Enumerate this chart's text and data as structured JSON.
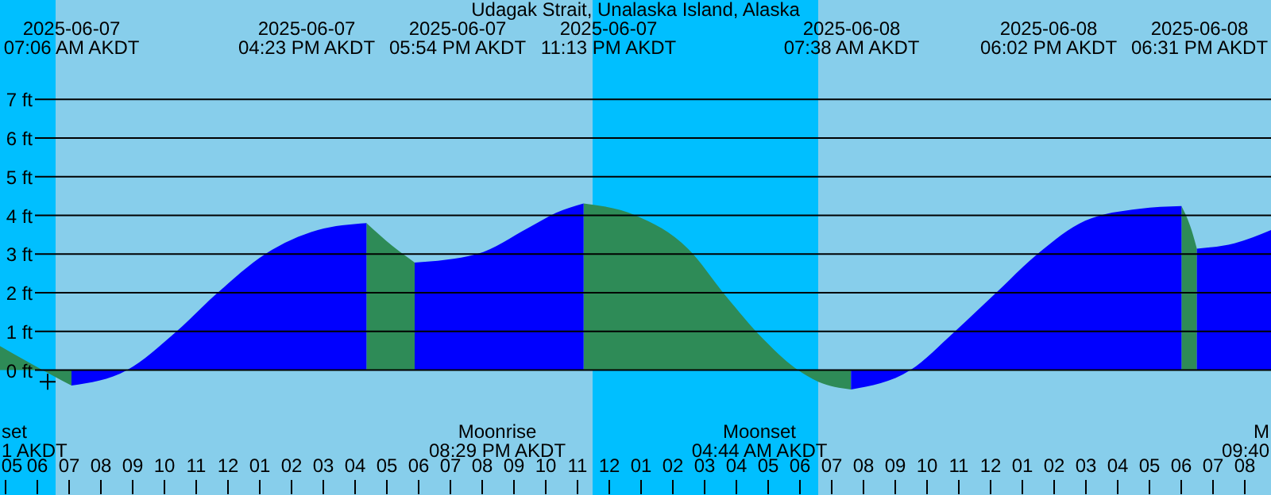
{
  "chart_data": {
    "type": "area",
    "title": "Udagak Strait, Unalaska Island, Alaska",
    "x": [
      "2025-06-07T04:51",
      "2025-06-07T06:30",
      "2025-06-07T07:06",
      "2025-06-07T08:51",
      "2025-06-07T10:21",
      "2025-06-07T11:42",
      "2025-06-07T13:12",
      "2025-06-07T14:51",
      "2025-06-07T16:23",
      "2025-06-07T17:12",
      "2025-06-07T17:54",
      "2025-06-07T19:51",
      "2025-06-07T21:30",
      "2025-06-07T22:21",
      "2025-06-07T23:13",
      "2025-06-08T00:51",
      "2025-06-08T02:30",
      "2025-06-08T03:42",
      "2025-06-08T04:51",
      "2025-06-08T05:51",
      "2025-06-08T06:36",
      "2025-06-08T07:38",
      "2025-06-08T09:30",
      "2025-06-08T10:51",
      "2025-06-08T12:12",
      "2025-06-08T13:30",
      "2025-06-08T15:00",
      "2025-06-08T16:42",
      "2025-06-08T18:02",
      "2025-06-08T18:21",
      "2025-06-08T18:31",
      "2025-06-08T19:42",
      "2025-06-08T20:51"
    ],
    "series": [
      {
        "color": "#2e8b57",
        "values": [
          0.62,
          -0.14,
          -0.4,
          null,
          null,
          null,
          null,
          null,
          3.8,
          3.21,
          2.78,
          null,
          null,
          null,
          4.31,
          4.0,
          3.14,
          1.91,
          0.82,
          0.07,
          -0.3,
          -0.5,
          null,
          null,
          null,
          null,
          null,
          null,
          4.24,
          3.62,
          3.14,
          null,
          null
        ]
      },
      {
        "color": "#0000ff",
        "values": [
          null,
          null,
          -0.4,
          0.0,
          0.96,
          2.0,
          3.0,
          3.62,
          3.8,
          null,
          2.78,
          3.0,
          3.69,
          4.07,
          4.31,
          null,
          null,
          null,
          null,
          null,
          null,
          -0.5,
          0.0,
          0.96,
          2.0,
          3.0,
          3.86,
          4.17,
          4.24,
          null,
          3.14,
          3.28,
          3.62
        ]
      },
      {
        "type": "scatter",
        "marker": "cross",
        "color": "#000000",
        "x": [
          "2025-06-07T06:21"
        ],
        "values": [
          -0.3
        ]
      }
    ],
    "xlim": [
      "2025-06-07T04:51",
      "2025-06-08T20:51"
    ],
    "xticks": [
      {
        "value": "2025-06-07T05:00",
        "label": "05"
      },
      {
        "value": "2025-06-07T06:00",
        "label": "06"
      },
      {
        "value": "2025-06-07T07:00",
        "label": "07"
      },
      {
        "value": "2025-06-07T08:00",
        "label": "08"
      },
      {
        "value": "2025-06-07T09:00",
        "label": "09"
      },
      {
        "value": "2025-06-07T10:00",
        "label": "10"
      },
      {
        "value": "2025-06-07T11:00",
        "label": "11"
      },
      {
        "value": "2025-06-07T12:00",
        "label": "12"
      },
      {
        "value": "2025-06-07T13:00",
        "label": "01"
      },
      {
        "value": "2025-06-07T14:00",
        "label": "02"
      },
      {
        "value": "2025-06-07T15:00",
        "label": "03"
      },
      {
        "value": "2025-06-07T16:00",
        "label": "04"
      },
      {
        "value": "2025-06-07T17:00",
        "label": "05"
      },
      {
        "value": "2025-06-07T18:00",
        "label": "06"
      },
      {
        "value": "2025-06-07T19:00",
        "label": "07"
      },
      {
        "value": "2025-06-07T20:00",
        "label": "08"
      },
      {
        "value": "2025-06-07T21:00",
        "label": "09"
      },
      {
        "value": "2025-06-07T22:00",
        "label": "10"
      },
      {
        "value": "2025-06-07T23:00",
        "label": "11"
      },
      {
        "value": "2025-06-08T00:00",
        "label": "12"
      },
      {
        "value": "2025-06-08T01:00",
        "label": "01"
      },
      {
        "value": "2025-06-08T02:00",
        "label": "02"
      },
      {
        "value": "2025-06-08T03:00",
        "label": "03"
      },
      {
        "value": "2025-06-08T04:00",
        "label": "04"
      },
      {
        "value": "2025-06-08T05:00",
        "label": "05"
      },
      {
        "value": "2025-06-08T06:00",
        "label": "06"
      },
      {
        "value": "2025-06-08T07:00",
        "label": "07"
      },
      {
        "value": "2025-06-08T08:00",
        "label": "08"
      },
      {
        "value": "2025-06-08T09:00",
        "label": "09"
      },
      {
        "value": "2025-06-08T10:00",
        "label": "10"
      },
      {
        "value": "2025-06-08T11:00",
        "label": "11"
      },
      {
        "value": "2025-06-08T12:00",
        "label": "12"
      },
      {
        "value": "2025-06-08T13:00",
        "label": "01"
      },
      {
        "value": "2025-06-08T14:00",
        "label": "02"
      },
      {
        "value": "2025-06-08T15:00",
        "label": "03"
      },
      {
        "value": "2025-06-08T16:00",
        "label": "04"
      },
      {
        "value": "2025-06-08T17:00",
        "label": "05"
      },
      {
        "value": "2025-06-08T18:00",
        "label": "06"
      },
      {
        "value": "2025-06-08T19:00",
        "label": "07"
      },
      {
        "value": "2025-06-08T20:00",
        "label": "08"
      }
    ],
    "ylim": [
      -3.23,
      9.57
    ],
    "yticks": [
      {
        "value": 0,
        "label": "0 ft"
      },
      {
        "value": 1,
        "label": "1 ft"
      },
      {
        "value": 2,
        "label": "2 ft"
      },
      {
        "value": 3,
        "label": "3 ft"
      },
      {
        "value": 4,
        "label": "4 ft"
      },
      {
        "value": 5,
        "label": "5 ft"
      },
      {
        "value": 6,
        "label": "6 ft"
      },
      {
        "value": 7,
        "label": "7 ft"
      }
    ],
    "grid": "y",
    "bands": [
      {
        "axis": "x",
        "from": "2025-06-07T04:51",
        "to": "2025-06-07T06:36",
        "color": "#00bfff"
      },
      {
        "axis": "x",
        "from": "2025-06-07T06:36",
        "to": "2025-06-07T23:30",
        "color": "#87ceeb"
      },
      {
        "axis": "x",
        "from": "2025-06-07T23:30",
        "to": "2025-06-08T06:36",
        "color": "#00bfff"
      },
      {
        "axis": "x",
        "from": "2025-06-08T06:36",
        "to": "2025-06-08T20:51",
        "color": "#87ceeb"
      }
    ],
    "annotations": [
      "2025-06-07\n07:06 AM AKDT",
      "2025-06-07\n04:23 PM AKDT",
      "2025-06-07\n05:54 PM AKDT",
      "2025-06-07\n11:13 PM AKDT",
      "2025-06-08\n07:38 AM AKDT",
      "2025-06-08\n06:02 PM AKDT",
      "2025-06-08\n06:31 PM AKDT",
      "set\n1 AKDT",
      "Moonrise\n08:29 PM AKDT",
      "Moonset\n04:44 AM AKDT",
      "M\n09:40"
    ]
  }
}
